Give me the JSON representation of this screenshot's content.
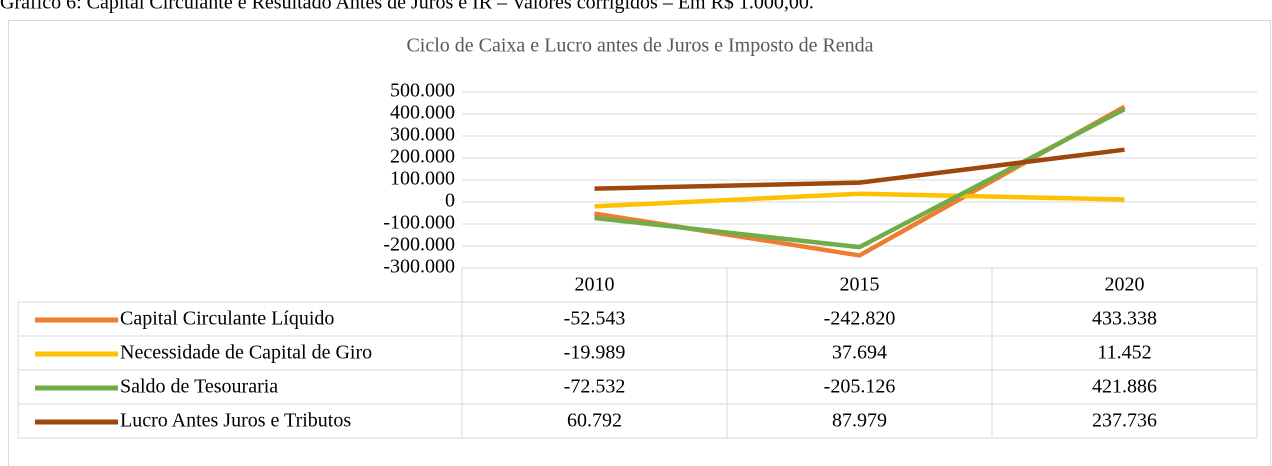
{
  "caption": "Gráfico 6: Capital Circulante e Resultado Antes de Juros e IR – Valores corrigidos – Em R$ 1.000,00.",
  "chart_data": {
    "type": "line",
    "title": "Ciclo de Caixa e Lucro antes de Juros e Imposto de Renda",
    "categories": [
      "2010",
      "2015",
      "2020"
    ],
    "series": [
      {
        "name": "Capital Circulante Líquido",
        "color": "#ed7d31",
        "values": [
          -52543,
          -242820,
          433338
        ],
        "value_labels": [
          "-52.543",
          "-242.820",
          "433.338"
        ]
      },
      {
        "name": "Necessidade de Capital de Giro",
        "color": "#ffc000",
        "values": [
          -19989,
          37694,
          11452
        ],
        "value_labels": [
          "-19.989",
          "37.694",
          "11.452"
        ]
      },
      {
        "name": "Saldo de Tesouraria",
        "color": "#70ad47",
        "values": [
          -72532,
          -205126,
          421886
        ],
        "value_labels": [
          "-72.532",
          "-205.126",
          "421.886"
        ]
      },
      {
        "name": "Lucro Antes Juros e Tributos",
        "color": "#9e480e",
        "values": [
          60792,
          87979,
          237736
        ],
        "value_labels": [
          "60.792",
          "87.979",
          "237.736"
        ]
      }
    ],
    "ylim": [
      -300000,
      500000
    ],
    "yticks": [
      {
        "value": -300000,
        "label": "-300.000"
      },
      {
        "value": -200000,
        "label": "-200.000"
      },
      {
        "value": -100000,
        "label": "-100.000"
      },
      0,
      {
        "value": 100000,
        "label": "100.000"
      },
      {
        "value": 200000,
        "label": "200.000"
      },
      {
        "value": 300000,
        "label": "300.000"
      },
      {
        "value": 400000,
        "label": "400.000"
      },
      {
        "value": 500000,
        "label": "500.000"
      }
    ],
    "grid": true,
    "legend": "table"
  }
}
